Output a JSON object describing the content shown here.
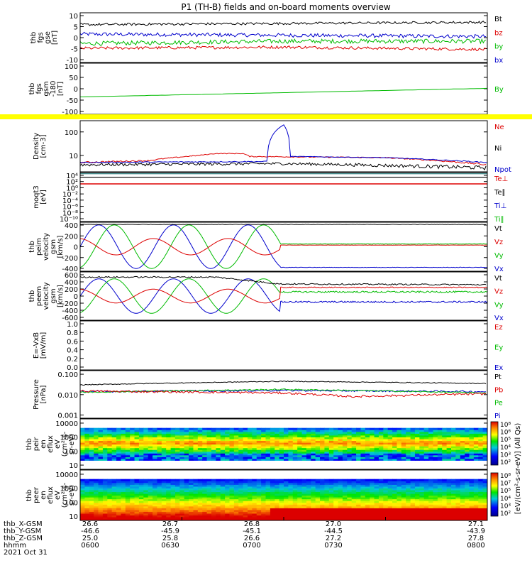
{
  "title": "P1 (TH-B) fields and on-board moments overview",
  "panels": [
    {
      "id": "fgs_gse",
      "ylabel": [
        "thb",
        "fgs",
        "gse",
        "[nT]"
      ],
      "yscale": "linear",
      "yticks": [
        "10",
        "5",
        "0",
        "-5",
        "-10"
      ],
      "yrange": [
        -10,
        11
      ],
      "legend": [
        {
          "text": "Bt",
          "color": "#000000"
        },
        {
          "text": "bz",
          "color": "#dd0000"
        },
        {
          "text": "by",
          "color": "#00bb00"
        },
        {
          "text": "bx",
          "color": "#0000cc"
        }
      ]
    },
    {
      "id": "fgs_gsm",
      "ylabel": [
        "thb",
        "fgs",
        "gsm",
        "-180",
        "[nT]"
      ],
      "yscale": "linear",
      "yticks": [
        "100",
        "50",
        "0",
        "-50",
        "-100"
      ],
      "yrange": [
        -125,
        125
      ],
      "legend": [
        {
          "text": "By",
          "color": "#00bb00"
        }
      ]
    },
    {
      "id": "density",
      "ylabel": [
        "Density",
        "[cm-3]"
      ],
      "yscale": "log",
      "yticks": [
        "100",
        "10"
      ],
      "yrange": [
        2,
        300
      ],
      "legend": [
        {
          "text": "Ne",
          "color": "#dd0000"
        },
        {
          "text": "Ni",
          "color": "#000000"
        },
        {
          "text": "Npot",
          "color": "#0000cc"
        }
      ]
    },
    {
      "id": "temp",
      "ylabel": [
        "moqt3",
        "[eV]"
      ],
      "yscale": "log",
      "yticks": [
        "10⁴",
        "10²",
        "10⁰",
        "10⁻²",
        "10⁻⁴",
        "10⁻⁶",
        "10⁻⁸",
        "10⁻¹⁰"
      ],
      "yrange": [
        1e-11,
        100000.0
      ],
      "legend": [
        {
          "text": "Te⊥",
          "color": "#dd0000"
        },
        {
          "text": "Te∥",
          "color": "#000000"
        },
        {
          "text": "Ti⊥",
          "color": "#0000cc"
        },
        {
          "text": "Ti∥",
          "color": "#00bb00"
        }
      ]
    },
    {
      "id": "vel_peim",
      "ylabel": [
        "thb",
        "peim",
        "velocity",
        "gsm",
        "[km/s]"
      ],
      "yscale": "linear",
      "yticks": [
        "400",
        "200",
        "0",
        "-200",
        "-400"
      ],
      "yrange": [
        -450,
        450
      ],
      "legend": [
        {
          "text": "Vt",
          "color": "#000000"
        },
        {
          "text": "Vz",
          "color": "#dd0000"
        },
        {
          "text": "Vy",
          "color": "#00bb00"
        },
        {
          "text": "Vx",
          "color": "#0000cc"
        }
      ]
    },
    {
      "id": "vel_peem",
      "ylabel": [
        "thb",
        "peem",
        "velocity",
        "gsm",
        "[km/s]"
      ],
      "yscale": "linear",
      "yticks": [
        "600",
        "400",
        "200",
        "0",
        "-200",
        "-400",
        "-600"
      ],
      "yrange": [
        -700,
        700
      ],
      "legend": [
        {
          "text": "Vt",
          "color": "#000000"
        },
        {
          "text": "Vz",
          "color": "#dd0000"
        },
        {
          "text": "Vy",
          "color": "#00bb00"
        },
        {
          "text": "Vx",
          "color": "#0000cc"
        }
      ]
    },
    {
      "id": "efield",
      "ylabel": [
        "E=-VxB",
        "[mV/m]"
      ],
      "yscale": "linear",
      "yticks": [
        "1.0",
        "0.8",
        "0.6",
        "0.4",
        "0.2",
        "0.0"
      ],
      "yrange": [
        -0.05,
        1.1
      ],
      "legend": [
        {
          "text": "Ez",
          "color": "#dd0000"
        },
        {
          "text": "Ey",
          "color": "#00bb00"
        },
        {
          "text": "Ex",
          "color": "#0000cc"
        }
      ]
    },
    {
      "id": "pressure",
      "ylabel": [
        "Pressure",
        "[nPa]"
      ],
      "yscale": "log",
      "yticks": [
        "0.100",
        "0.010",
        "0.001"
      ],
      "yrange": [
        0.0007,
        0.15
      ],
      "legend": [
        {
          "text": "Pt",
          "color": "#000000"
        },
        {
          "text": "Pb",
          "color": "#dd0000"
        },
        {
          "text": "Pe",
          "color": "#00bb00"
        },
        {
          "text": "Pi",
          "color": "#0000cc"
        }
      ]
    },
    {
      "id": "peir",
      "ylabel": [
        "thb",
        "peir",
        "en",
        "eflux",
        "eV",
        "(cm²-s-",
        "sr-eV)"
      ],
      "yscale": "log",
      "yticks": [
        "10000",
        "1000",
        "100",
        "10"
      ],
      "yrange": [
        5,
        20000
      ],
      "spectrogram": true
    },
    {
      "id": "peer",
      "ylabel": [
        "thb",
        "peer",
        "en",
        "eflux",
        "eV",
        "(cm²-s-",
        "sr-eV)"
      ],
      "yscale": "log",
      "yticks": [
        "10000",
        "1000",
        "100",
        "10"
      ],
      "yrange": [
        5,
        20000
      ],
      "spectrogram": true
    }
  ],
  "colorbar": {
    "ticks": [
      "10⁸",
      "10⁶",
      "10⁵",
      "10⁴",
      "10³",
      "10²"
    ],
    "ticks2": [
      "10⁸",
      "10⁷",
      "10⁵",
      "10⁴",
      "10³",
      "10²"
    ],
    "label": "[eV/(cm²-s-sr-eV)] (All Qs)"
  },
  "chart_data": {
    "type": "line",
    "title": "P1 (TH-B) fields and on-board moments overview",
    "x_ticks": [
      {
        "x": "26.6",
        "y": "-46.6",
        "z": "25.0",
        "hhmm": "0600"
      },
      {
        "x": "26.7",
        "y": "-45.9",
        "z": "25.8",
        "hhmm": "0630"
      },
      {
        "x": "26.8",
        "y": "-45.1",
        "z": "26.6",
        "hhmm": "0700"
      },
      {
        "x": "27.0",
        "y": "-44.5",
        "z": "27.2",
        "hhmm": "0730"
      },
      {
        "x": "27.1",
        "y": "-43.9",
        "z": "27.8",
        "hhmm": "0800"
      }
    ],
    "x_row_labels": [
      "thb_X-GSM",
      "thb_Y-GSM",
      "thb_Z-GSM",
      "hhmm"
    ],
    "date": "2021 Oct 31",
    "time_range_minutes": [
      0,
      120
    ],
    "series": {
      "fgs_gse": {
        "Bt": [
          [
            0,
            6
          ],
          [
            60,
            6.5
          ],
          [
            120,
            7
          ]
        ],
        "bz": [
          [
            0,
            -4
          ],
          [
            60,
            -3.5
          ],
          [
            120,
            -4.5
          ]
        ],
        "by": [
          [
            0,
            -2
          ],
          [
            60,
            -1
          ],
          [
            120,
            -1
          ]
        ],
        "bx": [
          [
            0,
            2
          ],
          [
            60,
            1.5
          ],
          [
            120,
            1
          ]
        ]
      },
      "fgs_gsm": {
        "By": [
          [
            0,
            -40
          ],
          [
            120,
            2
          ]
        ]
      },
      "density": {
        "Ne": [
          [
            0,
            5
          ],
          [
            20,
            6
          ],
          [
            35,
            10
          ],
          [
            40,
            12
          ],
          [
            48,
            12
          ],
          [
            50,
            9
          ],
          [
            90,
            8
          ],
          [
            120,
            4
          ]
        ],
        "Ni": [
          [
            0,
            4
          ],
          [
            60,
            4.5
          ],
          [
            120,
            3
          ]
        ],
        "Npot": [
          [
            0,
            5
          ],
          [
            55,
            5.5
          ],
          [
            60,
            200
          ],
          [
            62,
            9
          ],
          [
            90,
            8
          ],
          [
            120,
            5
          ]
        ]
      },
      "temp": {
        "Te∥": [
          [
            0,
            3000
          ],
          [
            120,
            3000
          ]
        ],
        "Te⊥": [
          [
            0,
            500
          ],
          [
            120,
            500
          ]
        ]
      },
      "vel_peim": {
        "Vt": [
          [
            0,
            410
          ],
          [
            120,
            410
          ]
        ],
        "Vz_amp": 150,
        "Vy_amp": 400,
        "Vx_amp": 400,
        "jump_min": 59,
        "Vz_after": 30,
        "Vy_after": 50,
        "Vx_after": -380
      },
      "vel_peem": {
        "Vt": [
          [
            0,
            550
          ],
          [
            40,
            550
          ],
          [
            59,
            350
          ],
          [
            120,
            330
          ]
        ],
        "Vz_amp": 200,
        "Vy_amp": 500,
        "Vx_amp": 500,
        "jump_min": 59,
        "Vz_after": 250,
        "Vy_after": 120,
        "Vx_after": -170
      },
      "pressure": {
        "Pt": [
          [
            0,
            0.03
          ],
          [
            60,
            0.045
          ],
          [
            120,
            0.035
          ]
        ],
        "Pb": [
          [
            0,
            0.015
          ],
          [
            60,
            0.012
          ],
          [
            80,
            0.008
          ],
          [
            120,
            0.011
          ]
        ],
        "Pe": [
          [
            0,
            0.013
          ],
          [
            60,
            0.018
          ],
          [
            120,
            0.012
          ]
        ],
        "Pi": [
          [
            0,
            0.014
          ],
          [
            60,
            0.016
          ],
          [
            120,
            0.014
          ]
        ]
      }
    }
  }
}
